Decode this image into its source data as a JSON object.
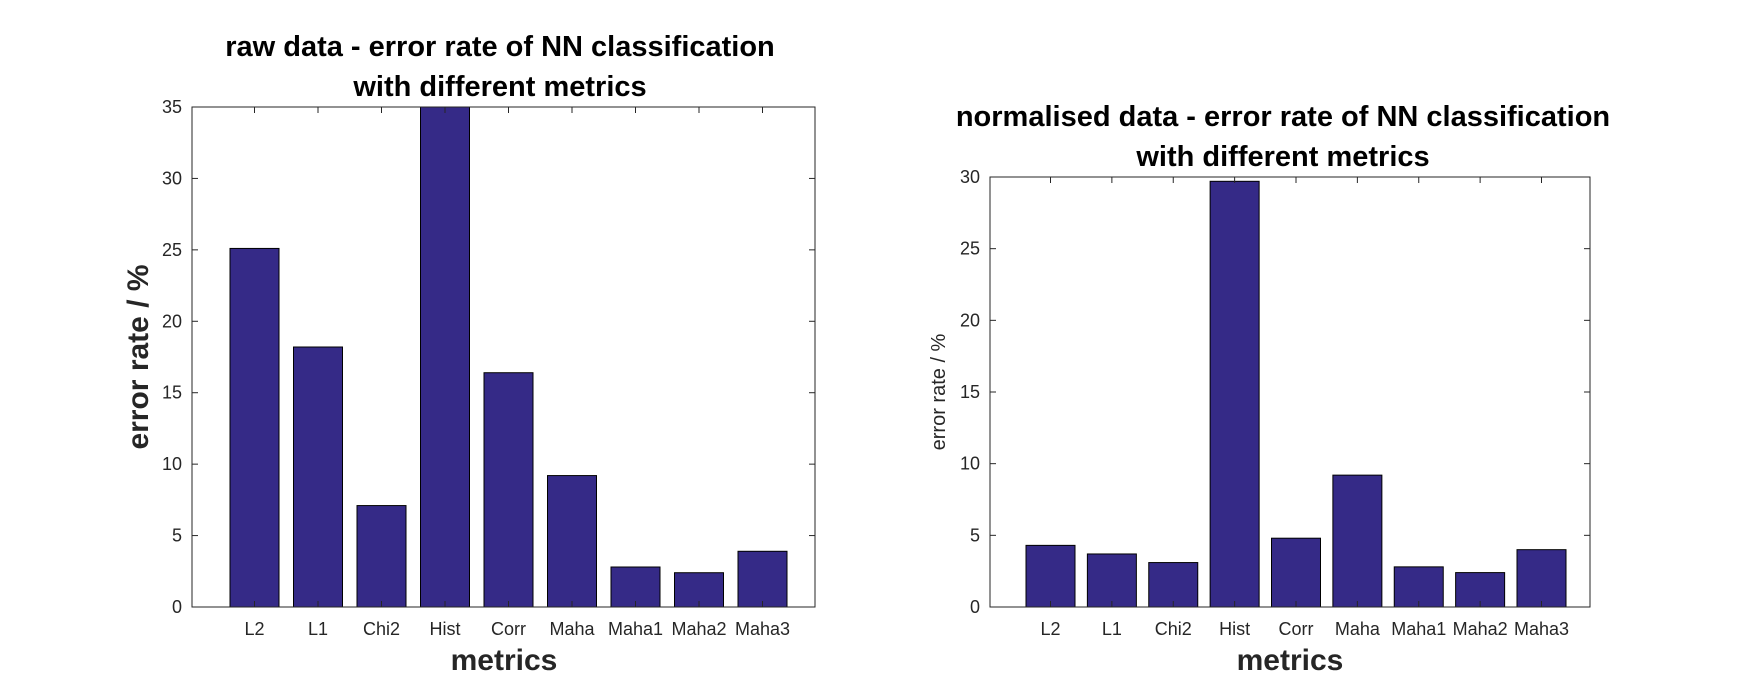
{
  "chart_data": [
    {
      "type": "bar",
      "title": [
        "raw data - error rate of NN classification",
        "with different metrics"
      ],
      "xlabel": "metrics",
      "ylabel": "error rate / %",
      "categories": [
        "L2",
        "L1",
        "Chi2",
        "Hist",
        "Corr",
        "Maha",
        "Maha1",
        "Maha2",
        "Maha3"
      ],
      "values": [
        25.1,
        18.2,
        7.1,
        35.0,
        16.4,
        9.2,
        2.8,
        2.4,
        3.9
      ],
      "ylim": [
        0,
        35
      ],
      "yticks": [
        0,
        5,
        10,
        15,
        20,
        25,
        30,
        35
      ],
      "bar_color": "#352a87",
      "grid": false
    },
    {
      "type": "bar",
      "title": [
        "normalised data - error rate of NN classification",
        "with different metrics"
      ],
      "xlabel": "metrics",
      "ylabel": "error rate / %",
      "categories": [
        "L2",
        "L1",
        "Chi2",
        "Hist",
        "Corr",
        "Maha",
        "Maha1",
        "Maha2",
        "Maha3"
      ],
      "values": [
        4.3,
        3.7,
        3.1,
        29.7,
        4.8,
        9.2,
        2.8,
        2.4,
        4.0
      ],
      "ylim": [
        0,
        30
      ],
      "yticks": [
        0,
        5,
        10,
        15,
        20,
        25,
        30
      ],
      "bar_color": "#352a87",
      "grid": false
    }
  ]
}
